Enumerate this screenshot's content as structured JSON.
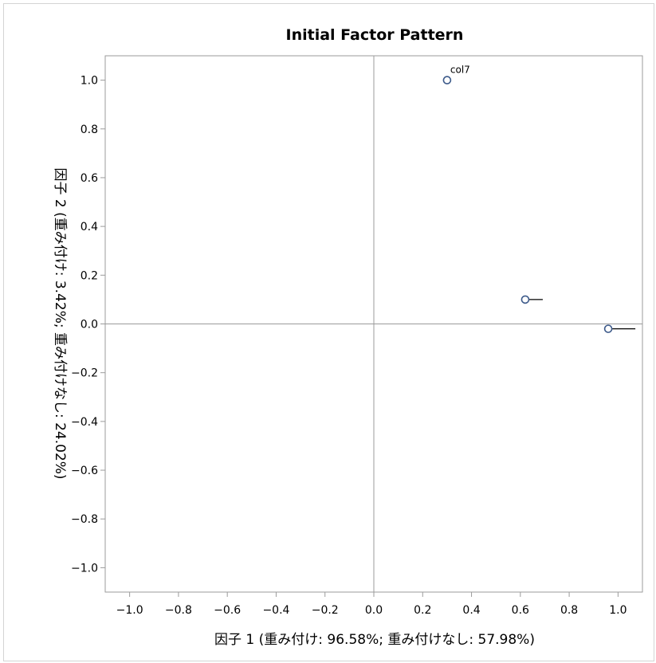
{
  "chart_data": {
    "type": "scatter",
    "title": "Initial Factor Pattern",
    "xlabel": "因子 1 (重み付け: 96.58%; 重み付けなし: 57.98%)",
    "ylabel": "因子 2 (重み付け: 3.42%; 重み付けなし: 24.02%)",
    "xlim": [
      -1.1,
      1.1
    ],
    "ylim": [
      -1.1,
      1.1
    ],
    "xticks": [
      "−1.0",
      "−0.8",
      "−0.6",
      "−0.4",
      "−0.2",
      "0.0",
      "0.2",
      "0.4",
      "0.6",
      "0.8",
      "1.0"
    ],
    "yticks": [
      "1.0",
      "0.8",
      "0.6",
      "0.4",
      "0.2",
      "0.0",
      "−0.2",
      "−0.4",
      "−0.6",
      "−0.8",
      "−1.0"
    ],
    "grid": false,
    "reference_lines": {
      "x": 0,
      "y": 0
    },
    "points": [
      {
        "label": "col7",
        "x": 0.3,
        "y": 1.0,
        "label_direction": "above-right"
      },
      {
        "label": "",
        "x": 0.62,
        "y": 0.1,
        "label_direction": "right"
      },
      {
        "label": "",
        "x": 0.96,
        "y": -0.02,
        "label_direction": "right"
      }
    ],
    "colors": {
      "marker_stroke": "#3d5a8a",
      "marker_fill": "#ffffff",
      "axis": "#9b9b9b",
      "reference": "#9b9b9b"
    }
  }
}
